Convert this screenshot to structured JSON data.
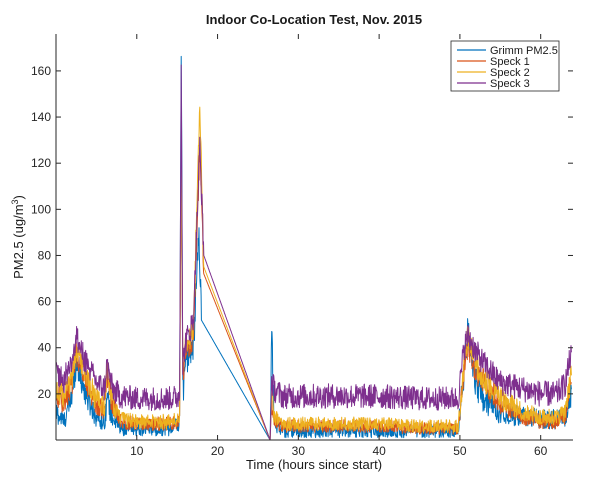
{
  "chart_data": {
    "type": "line",
    "title": "Indoor Co-Location Test, Nov. 2015",
    "xlabel": "Time (hours since start)",
    "ylabel_main": "PM2.5 (ug/m",
    "ylabel_sup": "3",
    "ylabel_close": ")",
    "xlim": [
      0,
      64
    ],
    "ylim": [
      0,
      176
    ],
    "xticks": [
      10,
      20,
      30,
      40,
      50,
      60
    ],
    "yticks": [
      20,
      40,
      60,
      80,
      100,
      120,
      140,
      160
    ],
    "grid": false,
    "legend_position": "top-right",
    "series": [
      {
        "name": "Grimm PM2.5",
        "color": "#0072BD",
        "noise": 5,
        "x": [
          0,
          1,
          2,
          2.5,
          3.5,
          5,
          6,
          6.3,
          7,
          8,
          10,
          12,
          14,
          15.3,
          15.5,
          15.7,
          16,
          17,
          17.7,
          18,
          26.5,
          26.7,
          27,
          28,
          30,
          35,
          40,
          45,
          49.8,
          50.5,
          51,
          51.5,
          52,
          53,
          55,
          58,
          60,
          62,
          63,
          63.8
        ],
        "y": [
          12,
          8,
          20,
          35,
          22,
          10,
          8,
          18,
          10,
          5,
          5,
          5,
          5,
          7,
          173,
          20,
          35,
          40,
          90,
          52,
          0,
          50,
          8,
          4,
          4,
          4,
          4,
          4,
          4,
          30,
          48,
          35,
          25,
          18,
          12,
          10,
          9,
          9,
          10,
          22
        ]
      },
      {
        "name": "Speck 1",
        "color": "#D95319",
        "noise": 4,
        "x": [
          0,
          1,
          2,
          2.5,
          3.5,
          5,
          6,
          6.3,
          7,
          8,
          10,
          12,
          14,
          15.3,
          15.5,
          15.7,
          16,
          17,
          17.8,
          18.3,
          26.5,
          26.7,
          27,
          28,
          30,
          35,
          40,
          45,
          49.8,
          50.5,
          51,
          51.5,
          52,
          53,
          55,
          58,
          60,
          62,
          63,
          63.8
        ],
        "y": [
          20,
          16,
          25,
          38,
          28,
          15,
          13,
          28,
          15,
          8,
          7,
          7,
          7,
          8,
          120,
          28,
          38,
          45,
          125,
          72,
          0,
          18,
          8,
          6,
          6,
          6,
          6,
          5,
          5,
          30,
          42,
          35,
          30,
          25,
          16,
          10,
          8,
          8,
          10,
          25
        ]
      },
      {
        "name": "Speck 2",
        "color": "#EDB120",
        "noise": 4,
        "x": [
          0,
          1,
          2,
          2.5,
          3.5,
          5,
          6,
          6.3,
          7,
          8,
          10,
          12,
          14,
          15.3,
          15.5,
          15.7,
          16,
          17,
          17.8,
          18.3,
          26.5,
          26.7,
          27,
          28,
          30,
          35,
          40,
          45,
          49.8,
          50.5,
          51,
          51.5,
          52,
          53,
          55,
          58,
          60,
          62,
          63,
          63.8
        ],
        "y": [
          22,
          18,
          28,
          40,
          30,
          17,
          15,
          30,
          16,
          9,
          8,
          8,
          8,
          9,
          125,
          30,
          40,
          48,
          147,
          75,
          0,
          20,
          10,
          7,
          7,
          7,
          7,
          6,
          6,
          32,
          45,
          38,
          32,
          27,
          18,
          12,
          10,
          10,
          12,
          28
        ]
      },
      {
        "name": "Speck 3",
        "color": "#7E2F8E",
        "noise": 4,
        "x": [
          0,
          1,
          2,
          2.5,
          3.5,
          5,
          6,
          6.3,
          7,
          8,
          10,
          12,
          14,
          15.3,
          15.5,
          15.7,
          16,
          17,
          17.8,
          18.3,
          26.5,
          26.7,
          27,
          28,
          30,
          35,
          40,
          45,
          49.8,
          50.5,
          51,
          51.5,
          52,
          53,
          55,
          58,
          60,
          62,
          63,
          63.8
        ],
        "y": [
          30,
          26,
          35,
          45,
          35,
          25,
          22,
          33,
          22,
          19,
          18,
          18,
          18,
          19,
          165,
          32,
          42,
          52,
          128,
          80,
          0,
          26,
          22,
          19,
          19,
          19,
          19,
          18,
          18,
          40,
          45,
          42,
          38,
          33,
          25,
          22,
          20,
          20,
          24,
          38
        ]
      }
    ]
  }
}
